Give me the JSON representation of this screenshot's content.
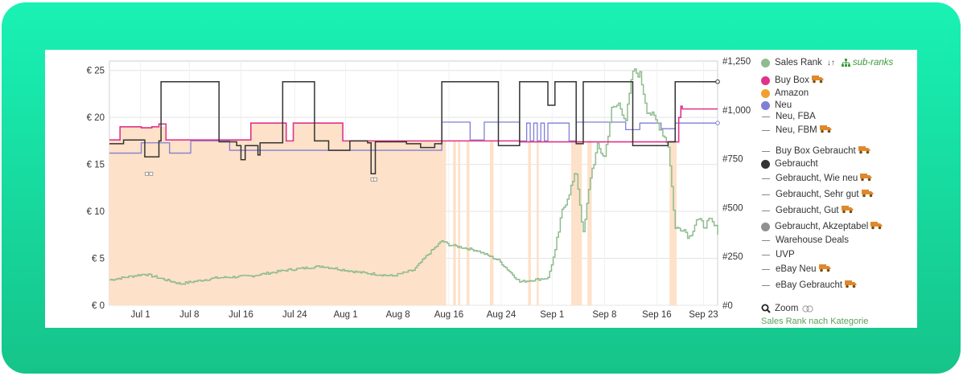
{
  "chart_data": {
    "type": "line",
    "x_labels": [
      "Jul 1",
      "Jul 8",
      "Jul 16",
      "Jul 24",
      "Aug 1",
      "Aug 8",
      "Aug 16",
      "Aug 24",
      "Sep 1",
      "Sep 8",
      "Sep 16",
      "Sep 23"
    ],
    "y_left": {
      "ticks": [
        "€ 0",
        "€ 5",
        "€ 10",
        "€ 15",
        "€ 20",
        "€ 25"
      ],
      "values": [
        0,
        5,
        10,
        15,
        20,
        25
      ],
      "range": [
        0,
        26
      ]
    },
    "y_right": {
      "ticks": [
        "#0",
        "#250",
        "#500",
        "#750",
        "#1,000",
        "#1,250"
      ],
      "values": [
        0,
        250,
        500,
        750,
        1000,
        1250
      ],
      "range": [
        0,
        1250
      ]
    },
    "x_range_days": [
      0,
      86
    ],
    "series": [
      {
        "name": "Gebraucht",
        "color": "#333333",
        "axis": "left",
        "points": [
          [
            0,
            17.2
          ],
          [
            4,
            17.4
          ],
          [
            5,
            17.8
          ],
          [
            6.5,
            17.6
          ],
          [
            7,
            23.8
          ],
          [
            15,
            23.8
          ],
          [
            15,
            17.5
          ],
          [
            18,
            17.5
          ],
          [
            18.5,
            17.2
          ],
          [
            19,
            16.8
          ],
          [
            20.5,
            16.5
          ],
          [
            22,
            16.6
          ],
          [
            23,
            16.8
          ],
          [
            24,
            17.3
          ],
          [
            25,
            17.5
          ],
          [
            25,
            23.8
          ],
          [
            29,
            23.8
          ],
          [
            29,
            17.5
          ],
          [
            35,
            17.5
          ],
          [
            35,
            17.3
          ],
          [
            37,
            17.2
          ],
          [
            38,
            17.5
          ],
          [
            42,
            17.6
          ],
          [
            42,
            17.0
          ],
          [
            46,
            17.0
          ],
          [
            46,
            17.5
          ],
          [
            48,
            17.3
          ],
          [
            50,
            17.0
          ],
          [
            52,
            16.7
          ],
          [
            52,
            17.5
          ],
          [
            46.8,
            17.5
          ],
          [
            47.5,
            17.5
          ]
        ],
        "color_hex": "#333333"
      },
      {
        "name": "Buy Box",
        "color": "#e0338a",
        "axis": "left"
      },
      {
        "name": "Neu",
        "color": "#7f7fd6",
        "axis": "left"
      },
      {
        "name": "Sales Rank",
        "color": "#8fbc8f",
        "axis": "right"
      }
    ],
    "legend_position": "right",
    "grid": true
  },
  "legend": {
    "sales_rank": "Sales Rank",
    "sort_glyph": "↓↑",
    "sub_ranks": "sub-ranks",
    "items": [
      {
        "label": "Buy Box",
        "kind": "dot",
        "color": "#e0338a",
        "truck": true
      },
      {
        "label": "Amazon",
        "kind": "dot",
        "color": "#f0a030",
        "truck": false
      },
      {
        "label": "Neu",
        "kind": "dot",
        "color": "#7f7fd6",
        "truck": false
      },
      {
        "label": "Neu, FBA",
        "kind": "dash",
        "color": "#888888",
        "truck": false
      },
      {
        "label": "Neu, FBM",
        "kind": "dash",
        "color": "#888888",
        "truck": true
      },
      {
        "label": "Buy Box Gebraucht",
        "kind": "dash",
        "color": "#888888",
        "truck": true
      },
      {
        "label": "Gebraucht",
        "kind": "dot",
        "color": "#333333",
        "truck": false
      },
      {
        "label": "Gebraucht, Wie neu",
        "kind": "dash",
        "color": "#888888",
        "truck": true
      },
      {
        "label": "Gebraucht, Sehr gut",
        "kind": "dash",
        "color": "#888888",
        "truck": true
      },
      {
        "label": "Gebraucht, Gut",
        "kind": "dash",
        "color": "#888888",
        "truck": true
      },
      {
        "label": "Gebraucht, Akzeptabel",
        "kind": "dot",
        "color": "#909090",
        "truck": true
      },
      {
        "label": "Warehouse Deals",
        "kind": "dash",
        "color": "#888888",
        "truck": false
      },
      {
        "label": "UVP",
        "kind": "dash",
        "color": "#888888",
        "truck": false
      },
      {
        "label": "eBay Neu",
        "kind": "dash",
        "color": "#888888",
        "truck": true
      },
      {
        "label": "eBay Gebraucht",
        "kind": "dash",
        "color": "#888888",
        "truck": true
      }
    ],
    "zoom": "Zoom",
    "category_link": "Sales Rank nach Kategorie"
  }
}
